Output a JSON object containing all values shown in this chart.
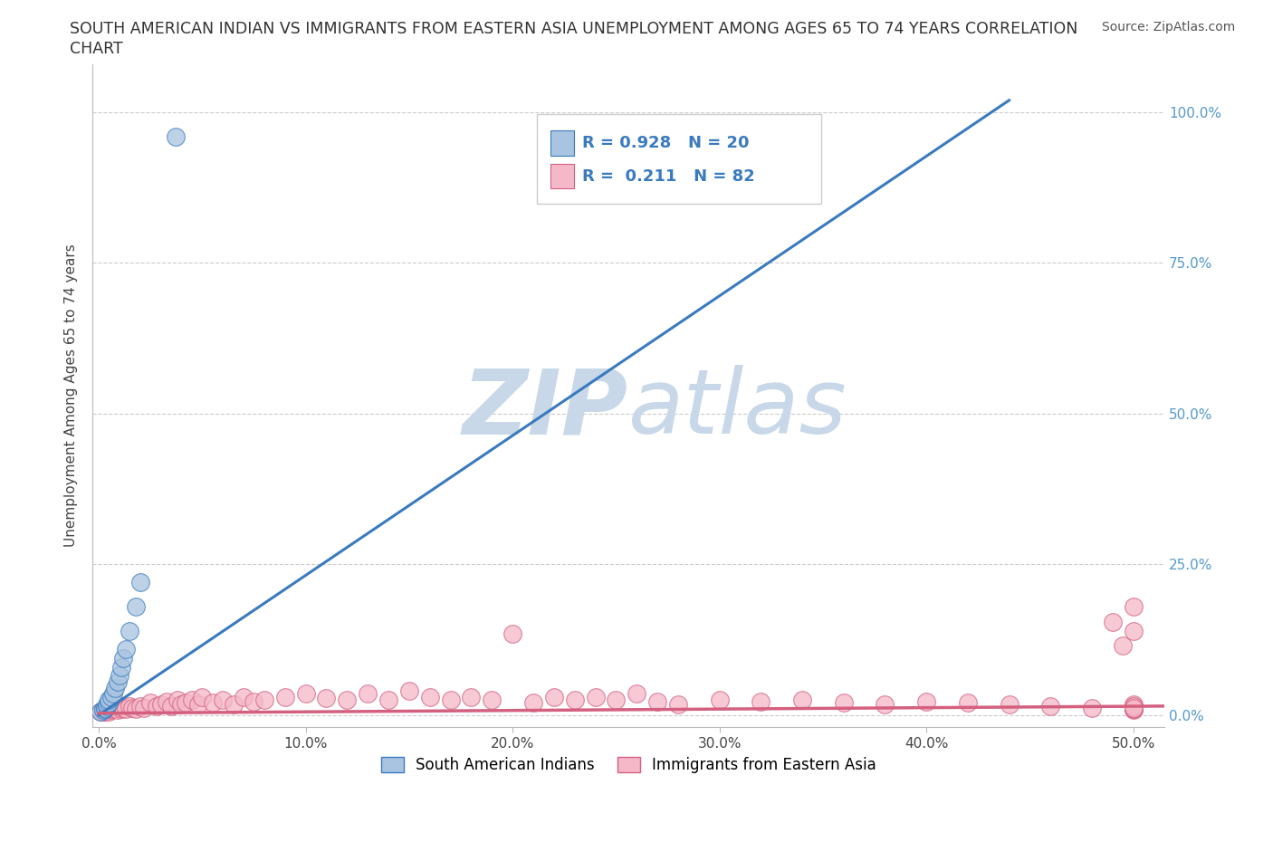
{
  "title_line1": "SOUTH AMERICAN INDIAN VS IMMIGRANTS FROM EASTERN ASIA UNEMPLOYMENT AMONG AGES 65 TO 74 YEARS CORRELATION",
  "title_line2": "CHART",
  "source_text": "Source: ZipAtlas.com",
  "xlabel_ticks": [
    "0.0%",
    "10.0%",
    "20.0%",
    "30.0%",
    "40.0%",
    "50.0%"
  ],
  "xlabel_vals": [
    0.0,
    0.1,
    0.2,
    0.3,
    0.4,
    0.5
  ],
  "ylabel_ticks": [
    "0.0%",
    "25.0%",
    "50.0%",
    "75.0%",
    "100.0%"
  ],
  "ylabel_vals": [
    0.0,
    0.25,
    0.5,
    0.75,
    1.0
  ],
  "ylabel_label": "Unemployment Among Ages 65 to 74 years",
  "blue_R": 0.928,
  "blue_N": 20,
  "pink_R": 0.211,
  "pink_N": 82,
  "blue_color": "#a8c4e0",
  "pink_color": "#f4b8c8",
  "blue_line_color": "#3a7abf",
  "pink_line_color": "#d46080",
  "watermark_color": "#c8d8e8",
  "legend_blue_label": "South American Indians",
  "legend_pink_label": "Immigrants from Eastern Asia",
  "blue_scatter_x": [
    0.001,
    0.002,
    0.003,
    0.003,
    0.004,
    0.004,
    0.005,
    0.005,
    0.006,
    0.007,
    0.008,
    0.009,
    0.01,
    0.011,
    0.012,
    0.013,
    0.015,
    0.018,
    0.02,
    0.037
  ],
  "blue_scatter_y": [
    0.005,
    0.008,
    0.01,
    0.012,
    0.015,
    0.018,
    0.02,
    0.025,
    0.03,
    0.035,
    0.045,
    0.055,
    0.065,
    0.08,
    0.095,
    0.11,
    0.14,
    0.18,
    0.22,
    0.96
  ],
  "pink_scatter_x": [
    0.001,
    0.002,
    0.002,
    0.003,
    0.003,
    0.004,
    0.004,
    0.005,
    0.005,
    0.006,
    0.006,
    0.007,
    0.008,
    0.009,
    0.01,
    0.011,
    0.012,
    0.013,
    0.015,
    0.016,
    0.018,
    0.02,
    0.022,
    0.025,
    0.028,
    0.03,
    0.033,
    0.035,
    0.038,
    0.04,
    0.042,
    0.045,
    0.048,
    0.05,
    0.055,
    0.06,
    0.065,
    0.07,
    0.075,
    0.08,
    0.09,
    0.1,
    0.11,
    0.12,
    0.13,
    0.14,
    0.15,
    0.16,
    0.17,
    0.18,
    0.19,
    0.2,
    0.21,
    0.22,
    0.23,
    0.24,
    0.25,
    0.26,
    0.27,
    0.28,
    0.3,
    0.32,
    0.34,
    0.36,
    0.38,
    0.4,
    0.42,
    0.44,
    0.46,
    0.48,
    0.49,
    0.495,
    0.5,
    0.5,
    0.5,
    0.5,
    0.5,
    0.5,
    0.5,
    0.5,
    0.5,
    0.5
  ],
  "pink_scatter_y": [
    0.005,
    0.005,
    0.008,
    0.005,
    0.01,
    0.008,
    0.012,
    0.005,
    0.01,
    0.008,
    0.015,
    0.01,
    0.012,
    0.008,
    0.015,
    0.01,
    0.012,
    0.01,
    0.015,
    0.012,
    0.01,
    0.015,
    0.012,
    0.02,
    0.015,
    0.018,
    0.022,
    0.015,
    0.025,
    0.018,
    0.02,
    0.025,
    0.018,
    0.03,
    0.02,
    0.025,
    0.018,
    0.03,
    0.022,
    0.025,
    0.03,
    0.035,
    0.028,
    0.025,
    0.035,
    0.025,
    0.04,
    0.03,
    0.025,
    0.03,
    0.025,
    0.135,
    0.02,
    0.03,
    0.025,
    0.03,
    0.025,
    0.035,
    0.022,
    0.018,
    0.025,
    0.022,
    0.025,
    0.02,
    0.018,
    0.022,
    0.02,
    0.018,
    0.015,
    0.012,
    0.155,
    0.115,
    0.008,
    0.01,
    0.012,
    0.015,
    0.018,
    0.18,
    0.14,
    0.01,
    0.015,
    0.012
  ],
  "blue_line_x": [
    0.0,
    0.44
  ],
  "blue_line_y": [
    0.0,
    1.02
  ],
  "pink_line_x": [
    0.0,
    0.52
  ],
  "pink_line_y": [
    0.003,
    0.015
  ],
  "xlim": [
    -0.003,
    0.515
  ],
  "ylim": [
    -0.02,
    1.08
  ],
  "grid_color": "#cccccc",
  "right_tick_color": "#5599cc"
}
